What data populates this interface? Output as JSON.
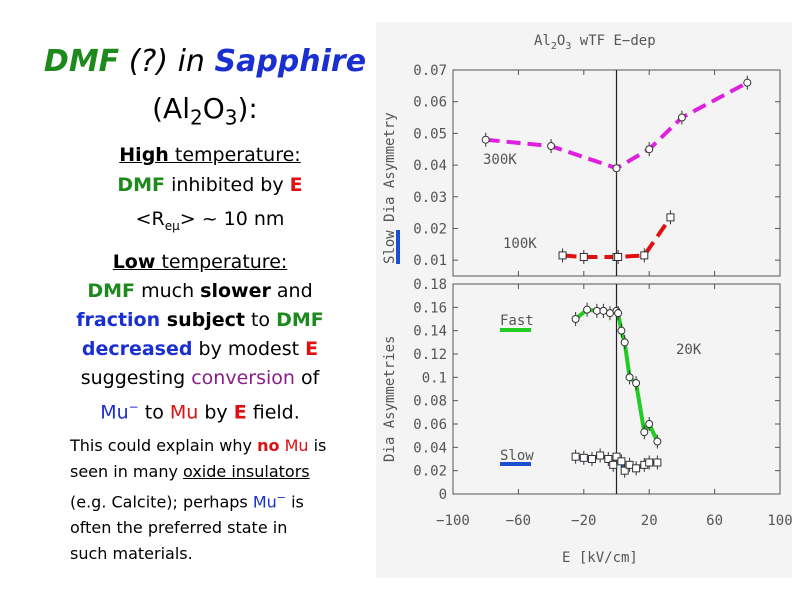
{
  "left": {
    "title_dmf": "DMF",
    "title_q": " (?) in ",
    "title_sapphire": "Sapphire",
    "formula_open": "(Al",
    "formula_sub1": "2",
    "formula_o": "O",
    "formula_sub2": "3",
    "formula_close": "):",
    "a_line1_bold": "High",
    "a_line1_rest": " temperature:",
    "a_line2_dmf": "DMF",
    "a_line2_rest": " inhibited by ",
    "a_line2_e": "E",
    "a_line3_open": "<R",
    "a_line3_sub": "eμ",
    "a_line3_close": "> ~ 10 nm",
    "b_l1_bold": "Low",
    "b_l1_rest": " temperature:",
    "b_l2_dmf": "DMF",
    "b_l2_mid": " much ",
    "b_l2_slower": "slower",
    "b_l2_end": " and",
    "b_l3_fraction": "fraction",
    "b_l3_subject": " subject",
    "b_l3_to": " to ",
    "b_l3_dmf": "DMF",
    "b_l4_decreased": "decreased",
    "b_l4_mid": " by modest ",
    "b_l4_e": "E",
    "b_l5_a": "suggesting ",
    "b_l5_conversion": "conversion",
    "b_l5_of": " of",
    "b_l6_mu": "Mu",
    "b_l6_sup": "−",
    "b_l6_to": " to ",
    "b_l6_mu2": "Mu",
    "b_l6_by": " by ",
    "b_l6_e": "E",
    "b_l6_field": " field.",
    "c_l1_a": "This could explain why ",
    "c_l1_no": "no",
    "c_l1_mu": " Mu",
    "c_l1_is": " is",
    "c_l2_a": "seen in many ",
    "c_l2_u": "oxide insulators",
    "c_l3_a": "(e.g. Calcite); perhaps ",
    "c_l3_mu": "Mu",
    "c_l3_sup": "−",
    "c_l3_is": " is",
    "c_l4": "often the preferred state in",
    "c_l5": "such materials."
  },
  "chart_data": [
    {
      "type": "line",
      "title": "Al2O3 wTF E-dep",
      "ylabel": "Slow Dia Asymmetry",
      "xlim": [
        -100,
        100
      ],
      "ylim": [
        0.005,
        0.07
      ],
      "yticks": [
        "0.07",
        "0.06",
        "0.05",
        "0.04",
        "0.03",
        "0.02",
        "0.01"
      ],
      "series": [
        {
          "name": "300K",
          "color": "#e020e0",
          "marker": "circle",
          "x": [
            -80,
            -40,
            0,
            20,
            40,
            80
          ],
          "y": [
            0.048,
            0.046,
            0.039,
            0.045,
            0.055,
            0.066
          ]
        },
        {
          "name": "100K",
          "color": "#e01010",
          "marker": "square",
          "x": [
            -33,
            -20,
            0,
            1,
            17,
            33
          ],
          "y": [
            0.0115,
            0.011,
            0.011,
            0.011,
            0.0115,
            0.0235
          ]
        }
      ]
    },
    {
      "type": "line",
      "ylabel": "Dia Asymmetries",
      "xlabel": "E [kV/cm]",
      "xlim": [
        -100,
        100
      ],
      "ylim": [
        0,
        0.18
      ],
      "xticks": [
        "−100",
        "−60",
        "−20",
        "20",
        "60",
        "100"
      ],
      "yticks": [
        "0.18",
        "0.16",
        "0.14",
        "0.12",
        "0.1",
        "0.08",
        "0.06",
        "0.04",
        "0.02",
        "0"
      ],
      "annotation": "20K",
      "series": [
        {
          "name": "Fast",
          "color": "#22cc22",
          "marker": "circle",
          "x": [
            -25,
            -18,
            -12,
            -8,
            -4,
            0,
            1,
            3,
            5,
            8,
            12,
            17,
            20,
            25
          ],
          "y": [
            0.15,
            0.158,
            0.157,
            0.157,
            0.155,
            0.157,
            0.155,
            0.14,
            0.13,
            0.1,
            0.095,
            0.053,
            0.06,
            0.045
          ]
        },
        {
          "name": "Slow",
          "color": "#1a50d0",
          "marker": "square",
          "x": [
            -25,
            -20,
            -15,
            -10,
            -5,
            -2,
            0,
            3,
            5,
            8,
            12,
            17,
            20,
            25
          ],
          "y": [
            0.032,
            0.031,
            0.03,
            0.033,
            0.03,
            0.025,
            0.032,
            0.028,
            0.02,
            0.025,
            0.022,
            0.025,
            0.027,
            0.027
          ]
        }
      ]
    }
  ]
}
